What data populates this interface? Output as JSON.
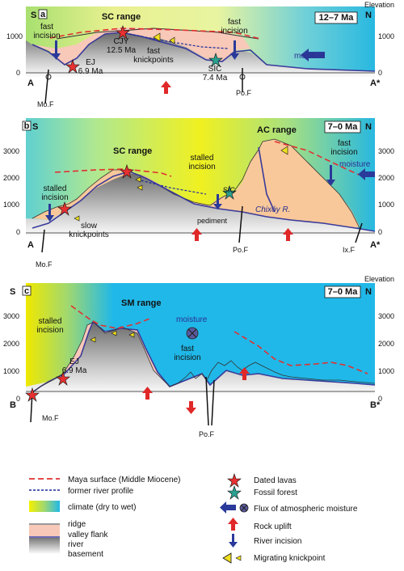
{
  "panels": [
    {
      "id": "a",
      "left": "S",
      "right": "N",
      "elevation_label": "Elevation",
      "time": "12–7 Ma",
      "y_ticks": [
        "1000",
        "0"
      ],
      "labels": {
        "range": "SC range",
        "fast_incision_l": "fast\nincision",
        "fast_incision_r": "fast\nincision",
        "ej": "EJ\n6.9 Ma",
        "cjy": "CJY\n12.5 Ma",
        "fast_knick": "fast\nknickpoints",
        "sic": "SIC\n7.4 Ma",
        "moisture": "moisture",
        "fault_l": "Mo.F",
        "fault_r": "Po.F",
        "end_l": "A",
        "end_r": "A*"
      }
    },
    {
      "id": "b",
      "left": "S",
      "right": "N",
      "time": "7–0 Ma",
      "y_ticks": [
        "3000",
        "2000",
        "1000",
        "0"
      ],
      "labels": {
        "range_sc": "SC range",
        "range_ac": "AC range",
        "stalled_l": "stalled\nincision",
        "stalled_m": "stalled\nincision",
        "fast_incision": "fast\nincision",
        "moisture": "moisture",
        "slow_knick": "slow\nknickpoints",
        "pediment": "pediment",
        "sic": "SIC",
        "river": "Chixóy R.",
        "fault_mo": "Mo.F",
        "fault_po": "Po.F",
        "fault_ix": "Ix.F",
        "end_l": "A",
        "end_r": "A*"
      }
    },
    {
      "id": "c",
      "left": "S",
      "right": "N",
      "elevation_label": "Elevation",
      "time": "7–0 Ma",
      "y_ticks": [
        "3000",
        "2000",
        "1000",
        "0"
      ],
      "labels": {
        "range": "SM range",
        "stalled": "stalled\nincision",
        "moisture": "moisture",
        "fast_incision": "fast\nincision",
        "ej": "EJ\n6.9 Ma",
        "fault_mo": "Mo.F",
        "fault_po": "Po.F",
        "end_l": "B",
        "end_r": "B*"
      }
    }
  ],
  "legend": {
    "maya_surface": "Maya surface (Middle Miocene)",
    "former_river": "former river profile",
    "climate": "climate (dry to wet)",
    "ridge": "ridge",
    "valley_flank": "valley flank",
    "river": "river",
    "basement": "basement",
    "dated_lavas": "Dated lavas",
    "fossil_forest": "Fossil forest",
    "flux": "Flux of atmospheric moisture",
    "rock_uplift": "Rock uplift",
    "river_incision": "River incision",
    "migrating_knick": "Migrating knickpoint"
  },
  "colors": {
    "maya_surface": "#e03030",
    "former_river": "#1a2a9a",
    "river": "#3a3a9a",
    "valley_flank": "#f8c8b8",
    "flank_orange": "#f8c89a",
    "uplift": "#e02828",
    "incision": "#2a3a9a",
    "climate_dry": "#f4f000",
    "climate_wet": "#20b8e8",
    "basement": "#9a9a9a"
  }
}
